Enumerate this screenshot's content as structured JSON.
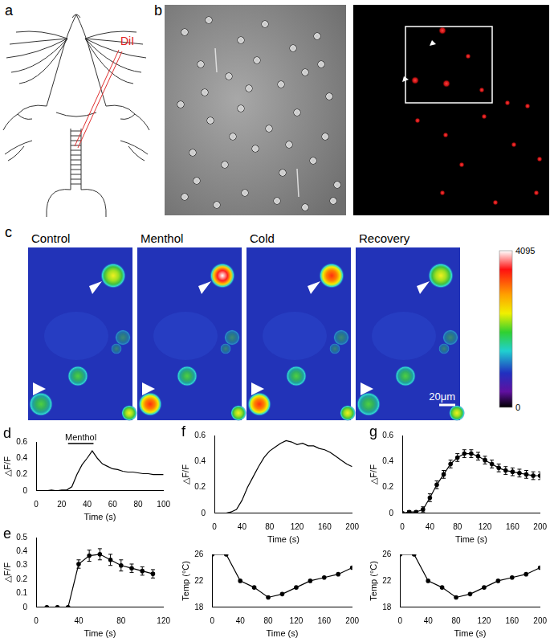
{
  "images": [
    {
      "panel": "a",
      "labels": [
        "DiI"
      ]
    },
    {
      "panel": "b"
    },
    {
      "panel": "c",
      "frames": [
        "Control",
        "Menthol",
        "Cold",
        "Recovery"
      ],
      "color_bar": {
        "range": [
          0,
          4095
        ],
        "ticks": [
          0,
          4095
        ]
      },
      "scale_bar": "20μm"
    }
  ],
  "chart_data": [
    {
      "panel": "d",
      "type": "line",
      "color": "#000000",
      "marker": "none",
      "line_style": "solid",
      "grid": false,
      "x": [
        0,
        4,
        8,
        12,
        16,
        20,
        24,
        28,
        32,
        36,
        40,
        44,
        48,
        52,
        56,
        60,
        64,
        68,
        72,
        76,
        80,
        84,
        88,
        92,
        96,
        100
      ],
      "values": [
        0,
        0,
        0,
        0.01,
        0,
        0.01,
        0.01,
        0.05,
        0.2,
        0.32,
        0.4,
        0.49,
        0.4,
        0.33,
        0.3,
        0.27,
        0.26,
        0.24,
        0.23,
        0.23,
        0.22,
        0.21,
        0.21,
        0.2,
        0.2,
        0.2
      ],
      "xlim": [
        0,
        100
      ],
      "xticks": [
        0,
        20,
        40,
        60,
        80,
        100
      ],
      "ylim": [
        0,
        0.6
      ],
      "yticks": [
        0,
        0.2,
        0.4,
        0.6
      ],
      "x_label": "Time (s)",
      "y_label": "△F/F",
      "annotations": [
        {
          "text": "Menthol",
          "x": [
            25,
            45
          ],
          "y": 0.58
        }
      ]
    },
    {
      "panel": "e",
      "type": "line",
      "color": "#000000",
      "marker": "circle",
      "line_style": "solid",
      "grid": false,
      "x": [
        10,
        20,
        30,
        40,
        50,
        60,
        70,
        80,
        90,
        100,
        110
      ],
      "values": [
        0,
        0,
        0,
        0.31,
        0.37,
        0.38,
        0.34,
        0.3,
        0.28,
        0.26,
        0.24
      ],
      "errors": [
        0,
        0,
        0,
        0.03,
        0.04,
        0.04,
        0.04,
        0.04,
        0.03,
        0.03,
        0.03
      ],
      "xlim": [
        0,
        120
      ],
      "xticks": [
        0,
        40,
        80,
        120
      ],
      "ylim": [
        0,
        0.5
      ],
      "yticks": [
        0,
        0.1,
        0.2,
        0.3,
        0.4,
        0.5
      ],
      "x_label": "Time (s)",
      "y_label": "△F/F"
    },
    {
      "panel": "f",
      "type": "line",
      "color": "#000000",
      "marker": "none",
      "line_style": "solid",
      "grid": false,
      "x": [
        0,
        8,
        16,
        24,
        32,
        40,
        48,
        56,
        64,
        72,
        80,
        88,
        96,
        104,
        112,
        120,
        128,
        136,
        144,
        152,
        160,
        168,
        176,
        184,
        192,
        200
      ],
      "values": [
        0,
        0,
        0,
        0.01,
        0.03,
        0.1,
        0.2,
        0.28,
        0.36,
        0.43,
        0.48,
        0.51,
        0.54,
        0.56,
        0.55,
        0.53,
        0.54,
        0.52,
        0.52,
        0.5,
        0.49,
        0.47,
        0.44,
        0.41,
        0.38,
        0.36
      ],
      "xlim": [
        0,
        200
      ],
      "xticks": [
        0,
        40,
        80,
        120,
        160,
        200
      ],
      "ylim": [
        0,
        0.6
      ],
      "yticks": [
        0,
        0.2,
        0.4,
        0.6
      ],
      "x_label": "Time (s)",
      "y_label": "△F/F"
    },
    {
      "type": "line",
      "color": "#000000",
      "marker": "circle",
      "line_style": "solid",
      "grid": false,
      "x": [
        0,
        20,
        40,
        60,
        80,
        100,
        120,
        140,
        160,
        180,
        200
      ],
      "values": [
        26,
        26,
        22,
        21,
        19.5,
        20,
        21,
        22,
        22.5,
        23,
        24
      ],
      "xlim": [
        0,
        200
      ],
      "xticks": [
        0,
        40,
        80,
        120,
        160,
        200
      ],
      "ylim": [
        18,
        26
      ],
      "yticks": [
        18,
        22,
        26
      ],
      "x_label": "Time (s)",
      "y_label": "Temp (°C)"
    },
    {
      "panel": "g",
      "type": "line",
      "color": "#000000",
      "marker": "circle",
      "line_style": "solid",
      "grid": false,
      "x": [
        0,
        10,
        20,
        30,
        40,
        50,
        60,
        70,
        80,
        90,
        100,
        110,
        120,
        130,
        140,
        150,
        160,
        170,
        180,
        190,
        200
      ],
      "values": [
        0,
        0.01,
        0.01,
        0.03,
        0.12,
        0.22,
        0.3,
        0.38,
        0.43,
        0.46,
        0.46,
        0.44,
        0.41,
        0.38,
        0.35,
        0.33,
        0.32,
        0.31,
        0.3,
        0.29,
        0.29
      ],
      "errors": [
        0.01,
        0.01,
        0.01,
        0.02,
        0.03,
        0.03,
        0.03,
        0.03,
        0.03,
        0.03,
        0.03,
        0.03,
        0.03,
        0.03,
        0.03,
        0.03,
        0.03,
        0.03,
        0.03,
        0.03,
        0.03
      ],
      "xlim": [
        0,
        200
      ],
      "xticks": [
        0,
        40,
        80,
        120,
        160,
        200
      ],
      "ylim": [
        0,
        0.6
      ],
      "yticks": [
        0,
        0.2,
        0.4,
        0.6
      ],
      "x_label": "Time (s)",
      "y_label": "△F/F"
    },
    {
      "type": "line",
      "color": "#000000",
      "marker": "circle",
      "line_style": "solid",
      "grid": false,
      "x": [
        0,
        20,
        40,
        60,
        80,
        100,
        120,
        140,
        160,
        180,
        200
      ],
      "values": [
        26,
        26,
        22,
        21,
        19.5,
        20,
        21,
        22,
        22.5,
        23,
        24
      ],
      "xlim": [
        0,
        200
      ],
      "xticks": [
        0,
        40,
        80,
        120,
        160,
        200
      ],
      "ylim": [
        18,
        26
      ],
      "yticks": [
        18,
        22,
        26
      ],
      "x_label": "Time (s)",
      "y_label": "Temp (°C)"
    }
  ]
}
